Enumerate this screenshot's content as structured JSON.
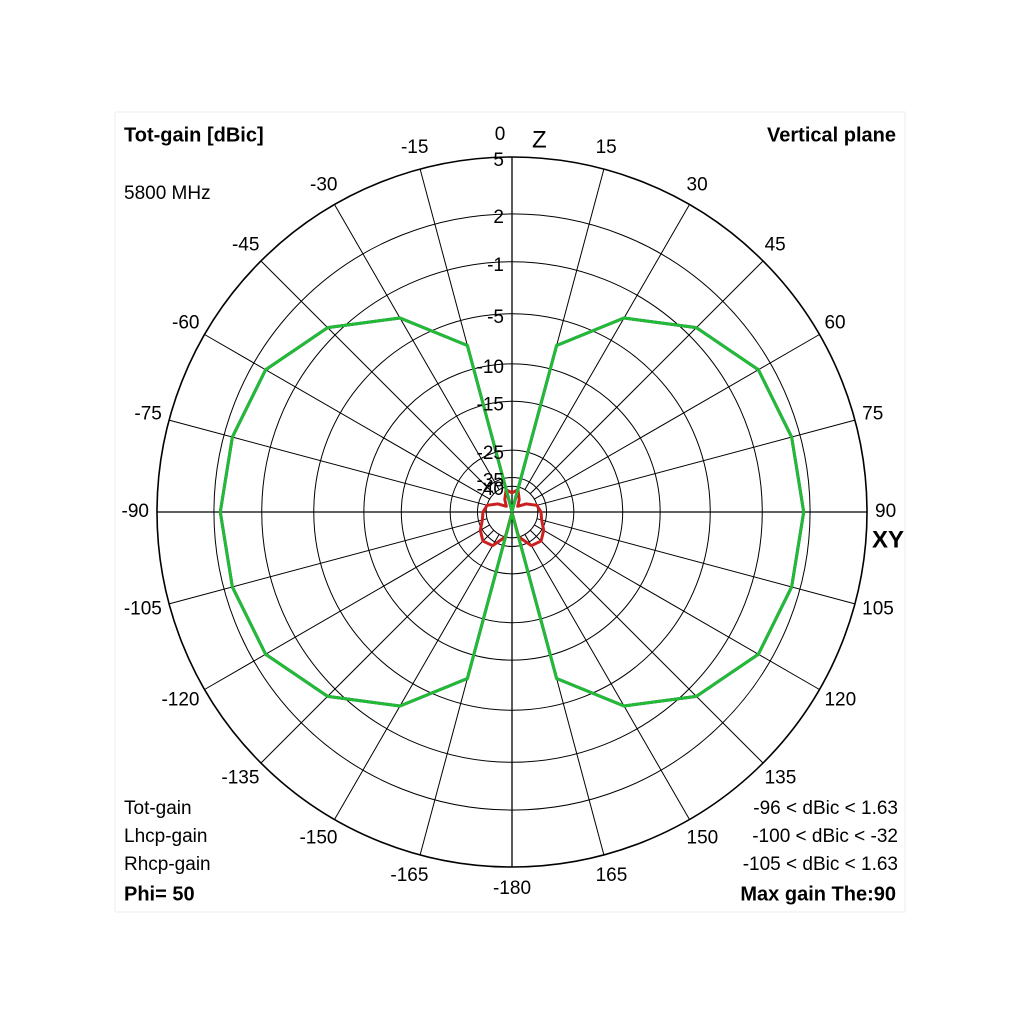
{
  "chart_data": {
    "type": "polar",
    "title": "Tot-gain [dBic]",
    "subtitle": "Vertical plane",
    "frequency": "5800 MHz",
    "top_axis": "Z",
    "side_axis": "XY",
    "phi_label": "Phi= 50",
    "max_gain_label": "Max gain The:90",
    "radial_scale": "arrl-log",
    "rlim": [
      -40,
      5
    ],
    "rticks": [
      5,
      2,
      -1,
      -5,
      -10,
      -15,
      -25,
      -35,
      -40
    ],
    "angle_ticks": [
      0,
      15,
      30,
      45,
      60,
      75,
      90,
      105,
      120,
      135,
      150,
      165,
      -180,
      -165,
      -150,
      -135,
      -120,
      -105,
      -90,
      -75,
      -60,
      -45,
      -30,
      -15
    ],
    "x": [
      -180,
      -165,
      -150,
      -135,
      -120,
      -105,
      -90,
      -75,
      -60,
      -45,
      -30,
      -15,
      0,
      15,
      30,
      45,
      60,
      75,
      90,
      105,
      120,
      135,
      150,
      165,
      180
    ],
    "series": [
      {
        "name": "Rhcp-gain",
        "color": "#1a1a9e",
        "range_label": "-105 < dBic < 1.63",
        "values": [
          -105,
          -7.4,
          -2.9,
          -0.3,
          1.2,
          1.5,
          1.63,
          1.5,
          1.2,
          -0.3,
          -2.9,
          -7.4,
          -105,
          -7.4,
          -2.9,
          -0.3,
          1.2,
          1.5,
          1.63,
          1.5,
          1.2,
          -0.3,
          -2.9,
          -7.4,
          -105
        ]
      },
      {
        "name": "Lhcp-gain",
        "color": "#cc1f1f",
        "range_label": "-100 < dBic < -32",
        "values": [
          -100,
          -40,
          -33,
          -32,
          -34,
          -37,
          -38,
          -40,
          -48,
          -60,
          -50,
          -42,
          -45,
          -42,
          -50,
          -60,
          -48,
          -40,
          -38,
          -37,
          -34,
          -32,
          -33,
          -40,
          -100
        ]
      },
      {
        "name": "Tot-gain",
        "color": "#22bb33",
        "range_label": "-96 < dBic < 1.63",
        "values": [
          -96,
          -7.4,
          -2.9,
          -0.3,
          1.2,
          1.5,
          1.63,
          1.5,
          1.2,
          -0.3,
          -2.9,
          -7.4,
          -96,
          -7.4,
          -2.9,
          -0.3,
          1.2,
          1.5,
          1.63,
          1.5,
          1.2,
          -0.3,
          -2.9,
          -7.4,
          -96
        ]
      }
    ]
  }
}
